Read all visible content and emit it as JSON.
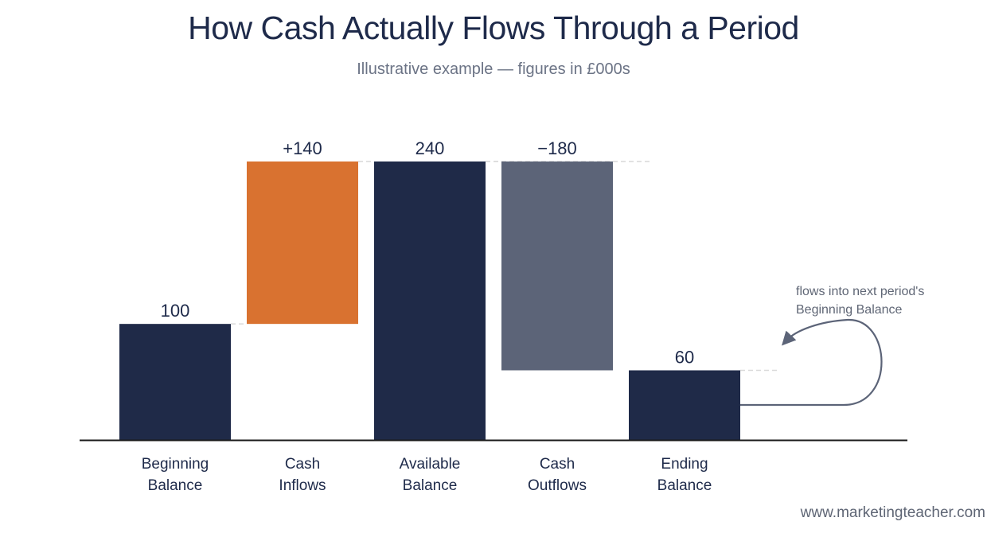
{
  "title": "How Cash Actually Flows Through a Period",
  "subtitle": "Illustrative example — figures in £000s",
  "credit": "www.marketingteacher.com",
  "annotation": {
    "lines": [
      "flows into next period's",
      "Beginning Balance"
    ]
  },
  "colors": {
    "total": "#1f2a48",
    "inflow": "#d97230",
    "outflow": "#5c6478",
    "axis": "#1a1a1a",
    "connector": "#d9d9d9",
    "arrow": "#5c6478"
  },
  "chart_data": {
    "type": "bar",
    "subtype": "waterfall",
    "categories": [
      [
        "Beginning",
        "Balance"
      ],
      [
        "Cash",
        "Inflows"
      ],
      [
        "Available",
        "Balance"
      ],
      [
        "Cash",
        "Outflows"
      ],
      [
        "Ending",
        "Balance"
      ]
    ],
    "bars": [
      {
        "kind": "total",
        "start": 0,
        "end": 100,
        "label": "100"
      },
      {
        "kind": "inflow",
        "start": 100,
        "end": 240,
        "label": "+140"
      },
      {
        "kind": "total",
        "start": 0,
        "end": 240,
        "label": "240"
      },
      {
        "kind": "outflow",
        "start": 240,
        "end": 60,
        "label": "−180"
      },
      {
        "kind": "total",
        "start": 0,
        "end": 60,
        "label": "60"
      }
    ],
    "ylim": [
      0,
      240
    ],
    "grid": false,
    "legend": "none"
  }
}
